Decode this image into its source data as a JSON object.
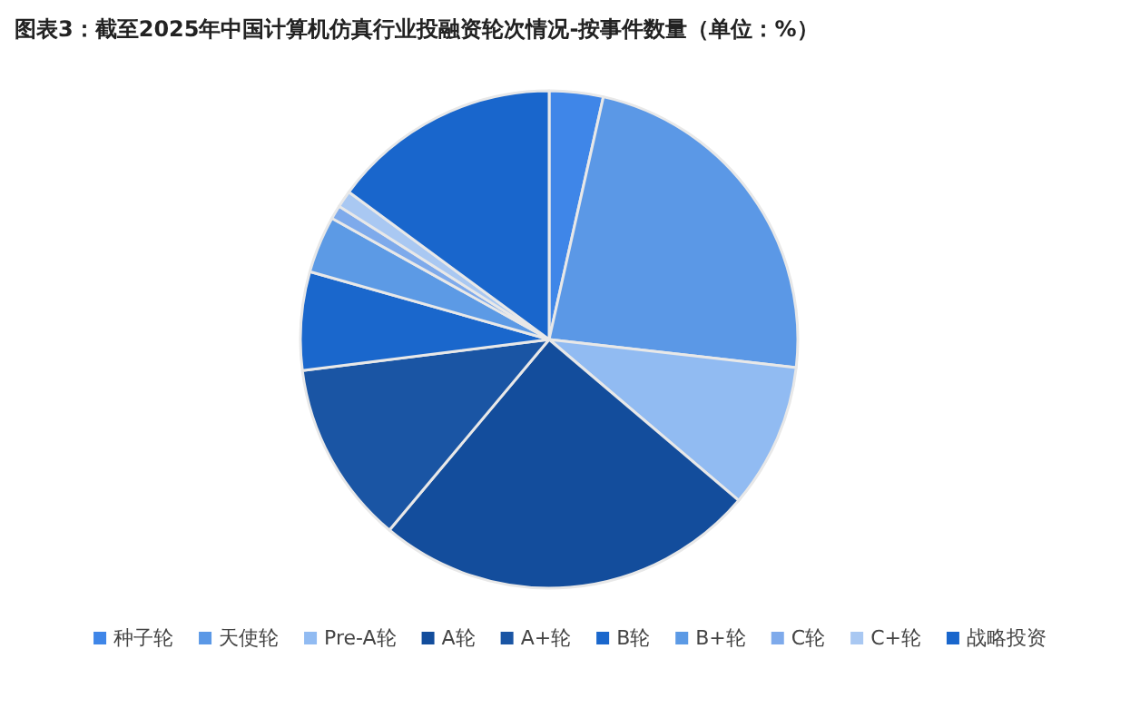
{
  "chart_data": {
    "type": "pie",
    "title": "图表3：截至2025年中国计算机仿真行业投融资轮次情况-按事件数量（单位：%）",
    "categories": [
      "种子轮",
      "天使轮",
      "Pre-A轮",
      "A轮",
      "A+轮",
      "B轮",
      "B+轮",
      "C轮",
      "C+轮",
      "战略投资"
    ],
    "values": [
      3.5,
      23.3,
      9.4,
      24.9,
      11.9,
      6.4,
      3.7,
      0.9,
      1.1,
      14.9
    ],
    "colors": [
      "#3f86e8",
      "#5b98e6",
      "#91bbf2",
      "#134d9c",
      "#1a55a4",
      "#1a67cc",
      "#5c9ae5",
      "#7eaaeb",
      "#a9c8f2",
      "#1966cc"
    ],
    "legend": "bottom"
  }
}
